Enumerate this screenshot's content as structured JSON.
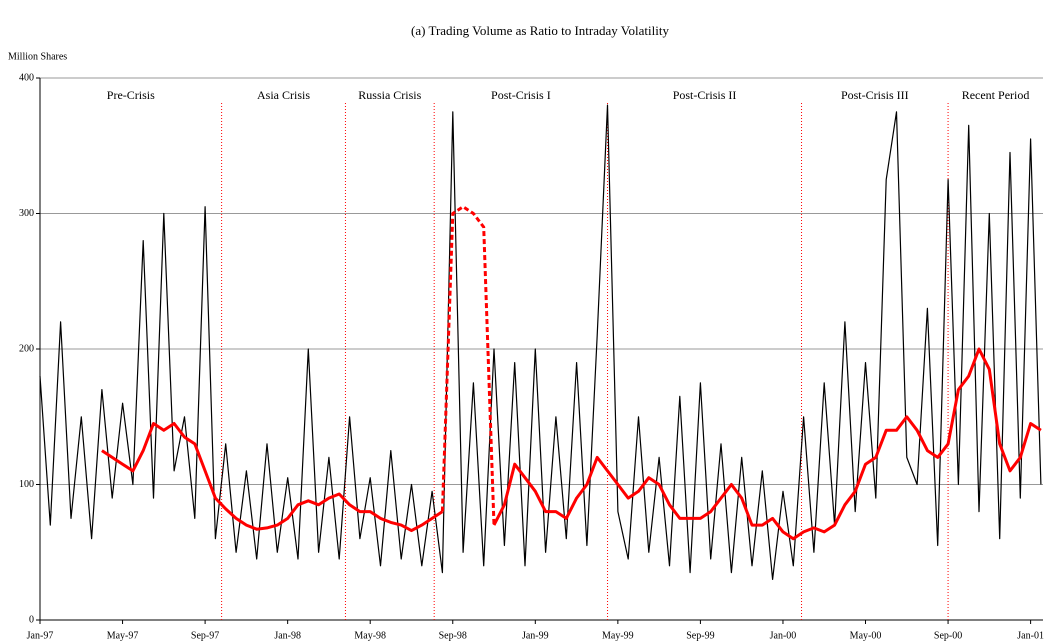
{
  "chart_data": {
    "type": "line",
    "title": "(a) Trading Volume as Ratio to Intraday Volatility",
    "y_label": "Million Shares",
    "x": [
      0,
      0.5,
      1,
      1.5,
      2,
      2.5,
      3,
      3.5,
      4,
      4.5,
      5,
      5.5,
      6,
      6.5,
      7,
      7.5,
      8,
      8.5,
      9,
      9.5,
      10,
      10.5,
      11,
      11.5,
      12,
      12.5,
      13,
      13.5,
      14,
      14.5,
      15,
      15.5,
      16,
      16.5,
      17,
      17.5,
      18,
      18.5,
      19,
      19.5,
      20,
      20.5,
      21,
      21.5,
      22,
      22.5,
      23,
      23.5,
      24,
      24.5,
      25,
      25.5,
      26,
      26.5,
      27,
      27.5,
      28,
      28.5,
      29,
      29.5,
      30,
      30.5,
      31,
      31.5,
      32,
      32.5,
      33,
      33.5,
      34,
      34.5,
      35,
      35.5,
      36,
      36.5,
      37,
      37.5,
      38,
      38.5,
      39,
      39.5,
      40,
      40.5,
      41,
      41.5,
      42,
      42.5,
      43,
      43.5,
      44,
      44.5,
      45,
      45.5,
      46,
      46.5,
      47,
      47.5,
      48,
      48.5
    ],
    "series": [
      {
        "color": "#000000",
        "width": 1.2,
        "values": [
          180,
          70,
          220,
          75,
          150,
          60,
          170,
          90,
          160,
          100,
          280,
          90,
          300,
          110,
          150,
          75,
          305,
          60,
          130,
          50,
          110,
          45,
          130,
          50,
          105,
          45,
          200,
          50,
          120,
          45,
          150,
          60,
          105,
          40,
          125,
          45,
          100,
          40,
          95,
          35,
          375,
          50,
          175,
          40,
          200,
          55,
          190,
          40,
          200,
          50,
          150,
          60,
          190,
          55,
          210,
          380,
          80,
          45,
          150,
          50,
          120,
          40,
          165,
          35,
          175,
          45,
          130,
          35,
          120,
          40,
          110,
          30,
          95,
          40,
          150,
          50,
          175,
          70,
          220,
          80,
          190,
          90,
          325,
          375,
          120,
          100,
          230,
          55,
          325,
          100,
          365,
          80,
          300,
          60,
          345,
          90,
          355,
          100
        ]
      },
      {
        "color": "#ff0000",
        "width": 3,
        "dashed": false,
        "values": [
          null,
          null,
          null,
          null,
          null,
          null,
          125,
          120,
          115,
          110,
          125,
          145,
          140,
          145,
          135,
          130,
          110,
          90,
          82,
          75,
          70,
          67,
          68,
          70,
          75,
          85,
          88,
          85,
          90,
          93,
          85,
          80,
          80,
          75,
          72,
          70,
          66,
          70,
          75,
          80,
          null,
          null,
          null,
          null,
          70,
          85,
          115,
          105,
          95,
          80,
          80,
          75,
          90,
          100,
          120,
          110,
          100,
          90,
          95,
          105,
          100,
          85,
          75,
          75,
          75,
          80,
          90,
          100,
          90,
          70,
          70,
          75,
          65,
          60,
          65,
          68,
          65,
          70,
          85,
          95,
          115,
          120,
          140,
          140,
          150,
          140,
          125,
          120,
          130,
          170,
          180,
          200,
          185,
          130,
          110,
          120,
          145,
          140
        ]
      },
      {
        "color": "#ff0000",
        "width": 3,
        "dashed": true,
        "values": [
          null,
          null,
          null,
          null,
          null,
          null,
          null,
          null,
          null,
          null,
          null,
          null,
          null,
          null,
          null,
          null,
          null,
          null,
          null,
          null,
          null,
          null,
          null,
          null,
          null,
          null,
          null,
          null,
          null,
          null,
          null,
          null,
          null,
          null,
          null,
          null,
          null,
          null,
          null,
          80,
          300,
          305,
          300,
          290,
          70,
          null,
          null,
          null,
          null,
          null,
          null,
          null,
          null,
          null,
          null,
          null,
          null,
          null,
          null,
          null,
          null,
          null,
          null,
          null,
          null,
          null,
          null,
          null,
          null,
          null,
          null,
          null,
          null,
          null,
          null,
          null,
          null,
          null,
          null,
          null,
          null,
          null,
          null,
          null,
          null,
          null,
          null,
          null,
          null,
          null,
          null,
          null,
          null,
          null,
          null,
          null,
          null,
          null
        ]
      }
    ],
    "xlim": [
      0,
      48.6
    ],
    "xticks": [
      {
        "value": 0,
        "label": "Jan-97"
      },
      {
        "value": 4,
        "label": "May-97"
      },
      {
        "value": 8,
        "label": "Sep-97"
      },
      {
        "value": 12,
        "label": "Jan-98"
      },
      {
        "value": 16,
        "label": "May-98"
      },
      {
        "value": 20,
        "label": "Sep-98"
      },
      {
        "value": 24,
        "label": "Jan-99"
      },
      {
        "value": 28,
        "label": "May-99"
      },
      {
        "value": 32,
        "label": "Sep-99"
      },
      {
        "value": 36,
        "label": "Jan-00"
      },
      {
        "value": 40,
        "label": "May-00"
      },
      {
        "value": 44,
        "label": "Sep-00"
      },
      {
        "value": 48,
        "label": "Jan-01"
      }
    ],
    "ylim": [
      0,
      400
    ],
    "yticks": [
      0,
      100,
      200,
      300,
      400
    ],
    "grid": true,
    "dividers": [
      8.8,
      14.8,
      19.1,
      27.5,
      36.9,
      44.0
    ],
    "divider_color": "#ff0000",
    "region_labels": [
      "Pre-Crisis",
      "Asia Crisis",
      "Russia Crisis",
      "Post-Crisis I",
      "Post-Crisis II",
      "Post-Crisis III",
      "Recent Period"
    ]
  }
}
